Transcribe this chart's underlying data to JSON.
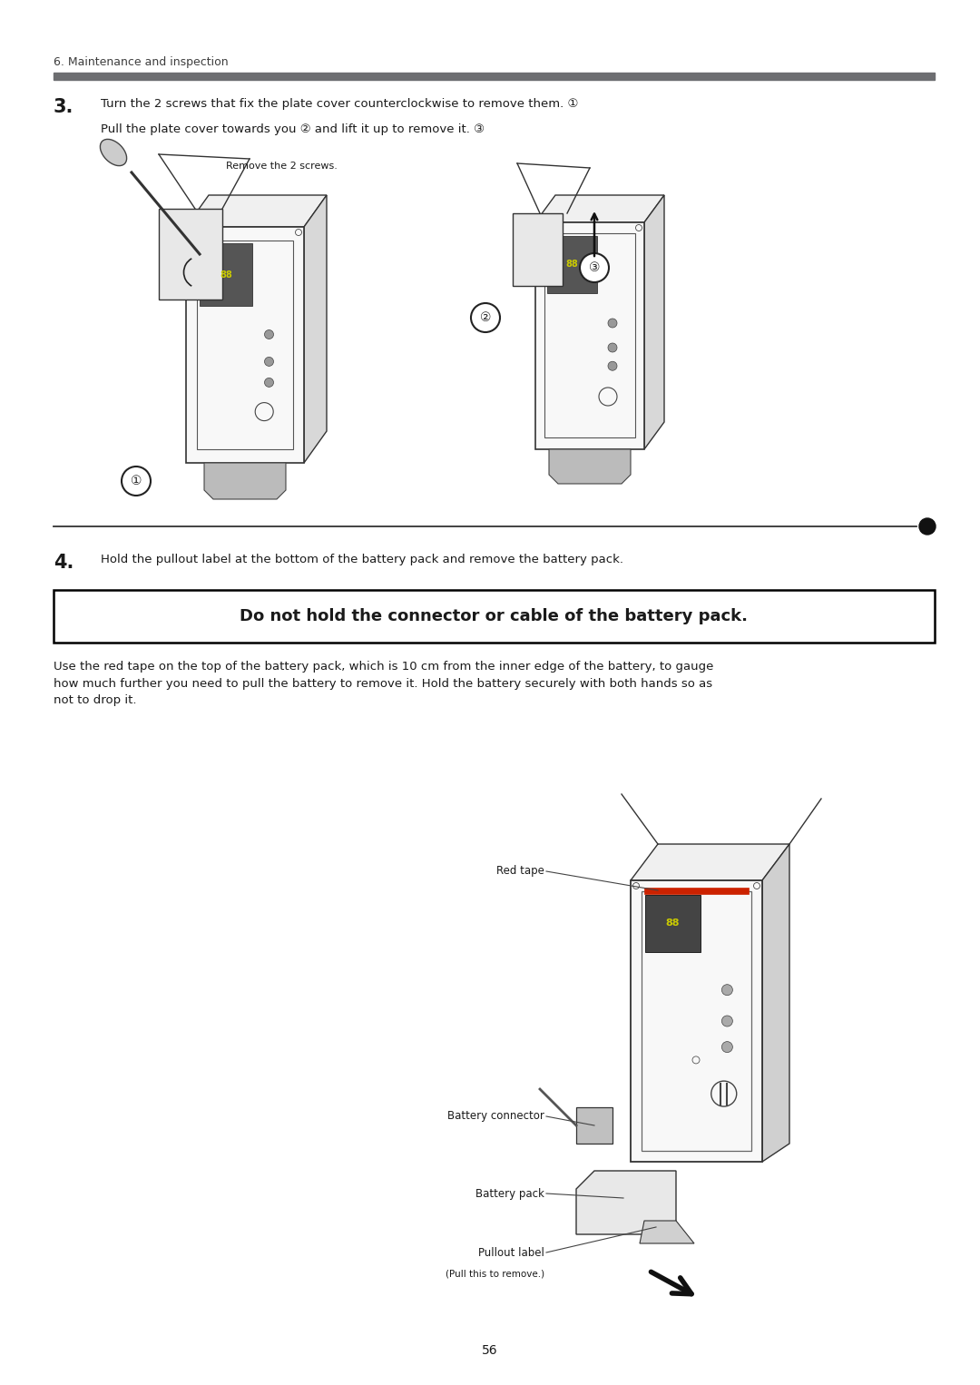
{
  "bg_color": "#ffffff",
  "page_width": 10.8,
  "page_height": 15.26,
  "dpi": 100,
  "header_text": "6. Maintenance and inspection",
  "header_bar_color": "#6d6e71",
  "step3_number": "3.",
  "step3_line1": "Turn the 2 screws that fix the plate cover counterclockwise to remove them. ①",
  "step3_line2": "Pull the plate cover towards you ② and lift it up to remove it. ③",
  "remove_screws_label": "Remove the 2 screws.",
  "step4_number": "4.",
  "step4_text": "Hold the pullout label at the bottom of the battery pack and remove the battery pack.",
  "warning_box_text": "Do not hold the connector or cable of the battery pack.",
  "body_text": "Use the red tape on the top of the battery pack, which is 10 cm from the inner edge of the battery, to gauge\nhow much further you need to pull the battery to remove it. Hold the battery securely with both hands so as\nnot to drop it.",
  "page_number": "56",
  "text_color": "#1a1a1a",
  "header_text_color": "#3d3d3d",
  "sep_line_color": "#1a1a1a",
  "warn_border_color": "#000000"
}
